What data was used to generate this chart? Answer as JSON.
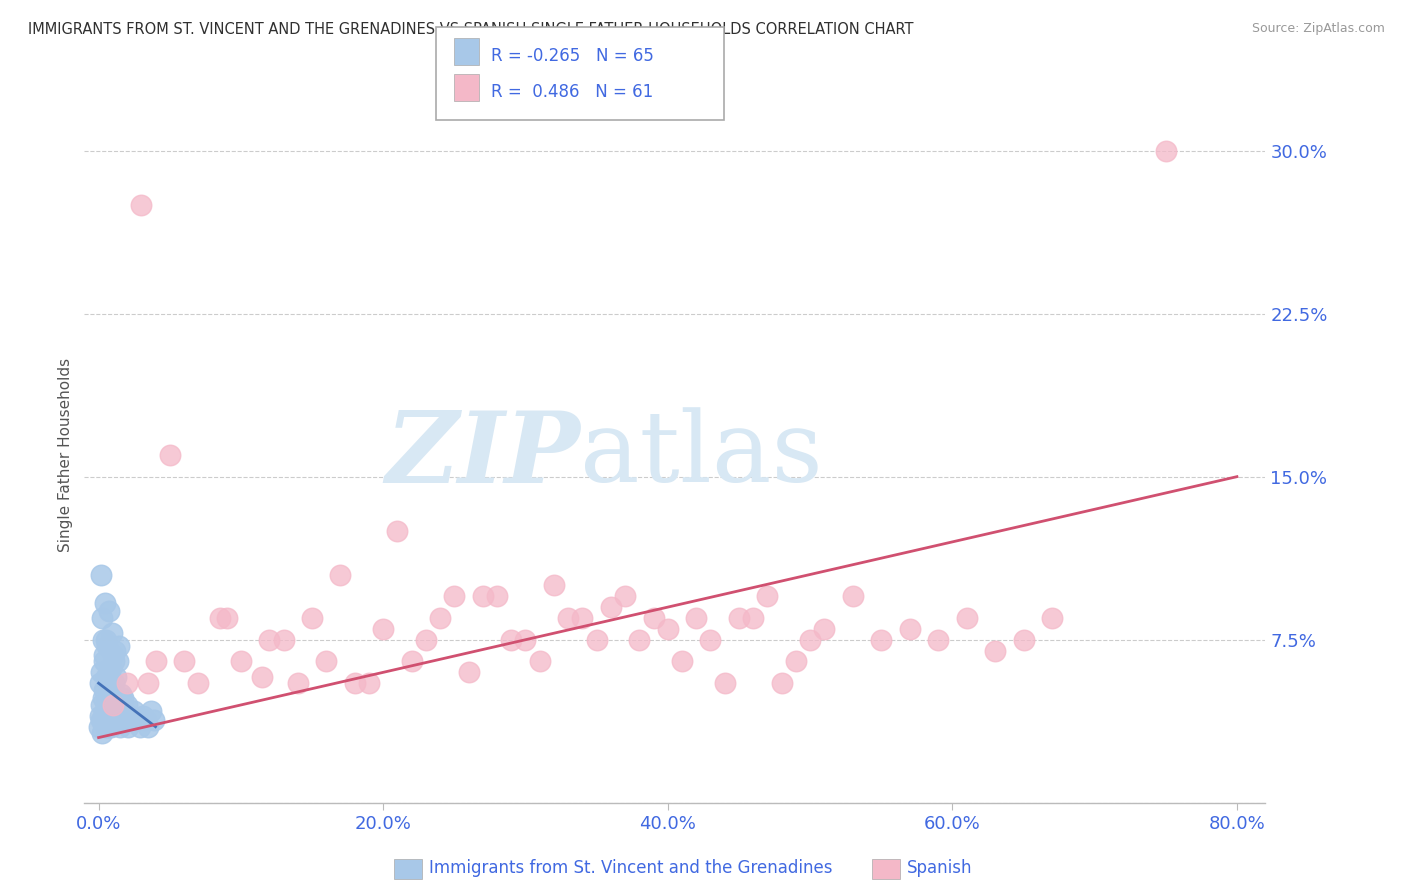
{
  "title": "IMMIGRANTS FROM ST. VINCENT AND THE GRENADINES VS SPANISH SINGLE FATHER HOUSEHOLDS CORRELATION CHART",
  "source": "Source: ZipAtlas.com",
  "xlabel_blue": "Immigrants from St. Vincent and the Grenadines",
  "xlabel_pink": "Spanish",
  "ylabel": "Single Father Households",
  "x_ticks": [
    0.0,
    20.0,
    40.0,
    60.0,
    80.0
  ],
  "x_tick_labels": [
    "0.0%",
    "20.0%",
    "40.0%",
    "60.0%",
    "80.0%"
  ],
  "y_ticks": [
    0.0,
    7.5,
    15.0,
    22.5,
    30.0
  ],
  "y_tick_labels": [
    "",
    "7.5%",
    "15.0%",
    "22.5%",
    "30.0%"
  ],
  "xlim": [
    -1,
    82
  ],
  "ylim": [
    0,
    32
  ],
  "legend_blue_R": "-0.265",
  "legend_blue_N": "65",
  "legend_pink_R": "0.486",
  "legend_pink_N": "61",
  "blue_color": "#a8c8e8",
  "pink_color": "#f4b8c8",
  "blue_line_color": "#4472b8",
  "pink_line_color": "#d05070",
  "title_color": "#303030",
  "tick_color": "#4169E1",
  "axis_color": "#bbbbbb",
  "grid_color": "#cccccc",
  "watermark_zip": "ZIP",
  "watermark_atlas": "atlas",
  "watermark_color": "#d8e8f4",
  "blue_scatter_x": [
    0.05,
    0.1,
    0.1,
    0.15,
    0.2,
    0.2,
    0.25,
    0.3,
    0.3,
    0.35,
    0.4,
    0.4,
    0.45,
    0.5,
    0.5,
    0.55,
    0.6,
    0.6,
    0.65,
    0.7,
    0.7,
    0.75,
    0.8,
    0.8,
    0.85,
    0.9,
    0.9,
    1.0,
    1.0,
    1.1,
    1.1,
    1.2,
    1.3,
    1.4,
    1.5,
    1.6,
    1.7,
    1.8,
    1.9,
    2.0,
    2.1,
    2.2,
    2.3,
    2.5,
    2.7,
    2.9,
    3.1,
    3.3,
    3.5,
    3.7,
    3.9,
    0.15,
    0.25,
    0.35,
    0.45,
    0.55,
    0.65,
    0.75,
    0.85,
    0.95,
    1.05,
    1.15,
    1.25,
    1.35,
    1.45
  ],
  "blue_scatter_y": [
    3.5,
    4.0,
    5.5,
    3.8,
    4.5,
    6.0,
    3.2,
    4.8,
    7.5,
    5.2,
    3.8,
    6.5,
    4.2,
    3.5,
    5.8,
    4.5,
    3.9,
    7.2,
    4.8,
    3.5,
    5.5,
    4.0,
    3.8,
    6.2,
    4.5,
    3.5,
    5.0,
    4.2,
    6.8,
    3.8,
    5.5,
    4.2,
    3.8,
    4.5,
    3.5,
    5.0,
    4.8,
    4.2,
    3.8,
    4.5,
    3.5,
    4.0,
    3.8,
    4.2,
    3.8,
    3.5,
    4.0,
    3.8,
    3.5,
    4.2,
    3.8,
    10.5,
    8.5,
    6.8,
    9.2,
    7.5,
    5.5,
    8.8,
    6.2,
    7.8,
    6.5,
    7.0,
    5.8,
    6.5,
    7.2
  ],
  "pink_scatter_x": [
    1.0,
    3.0,
    3.5,
    5.0,
    7.0,
    8.5,
    10.0,
    11.5,
    13.0,
    15.0,
    17.0,
    19.0,
    21.0,
    22.0,
    24.0,
    26.0,
    28.0,
    30.0,
    32.0,
    33.0,
    35.0,
    37.0,
    39.0,
    41.0,
    43.0,
    45.0,
    47.0,
    49.0,
    51.0,
    53.0,
    55.0,
    57.0,
    59.0,
    61.0,
    63.0,
    65.0,
    67.0,
    2.0,
    4.0,
    6.0,
    9.0,
    12.0,
    14.0,
    16.0,
    18.0,
    20.0,
    23.0,
    25.0,
    27.0,
    29.0,
    31.0,
    34.0,
    36.0,
    38.0,
    40.0,
    42.0,
    44.0,
    46.0,
    48.0,
    50.0,
    75.0
  ],
  "pink_scatter_y": [
    4.5,
    27.5,
    5.5,
    16.0,
    5.5,
    8.5,
    6.5,
    5.8,
    7.5,
    8.5,
    10.5,
    5.5,
    12.5,
    6.5,
    8.5,
    6.0,
    9.5,
    7.5,
    10.0,
    8.5,
    7.5,
    9.5,
    8.5,
    6.5,
    7.5,
    8.5,
    9.5,
    6.5,
    8.0,
    9.5,
    7.5,
    8.0,
    7.5,
    8.5,
    7.0,
    7.5,
    8.5,
    5.5,
    6.5,
    6.5,
    8.5,
    7.5,
    5.5,
    6.5,
    5.5,
    8.0,
    7.5,
    9.5,
    9.5,
    7.5,
    6.5,
    8.5,
    9.0,
    7.5,
    8.0,
    8.5,
    5.5,
    8.5,
    5.5,
    7.5,
    30.0
  ],
  "pink_trendline_x0": 0,
  "pink_trendline_y0": 3.0,
  "pink_trendline_x1": 80,
  "pink_trendline_y1": 15.0,
  "blue_trendline_x0": 0,
  "blue_trendline_y0": 5.5,
  "blue_trendline_x1": 4,
  "blue_trendline_y1": 3.5
}
